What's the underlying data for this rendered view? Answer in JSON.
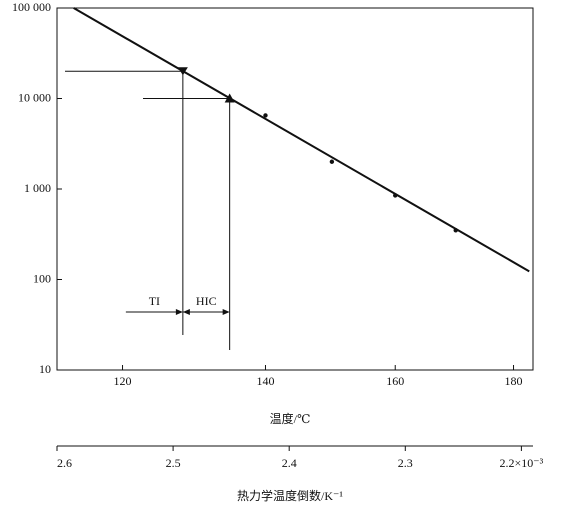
{
  "chart_data": {
    "type": "scatter",
    "xlabel": "温度/℃",
    "x2label": "热力学温度倒数/K⁻¹",
    "xscale": "reciprocal_kelvin",
    "xticks": [
      120,
      140,
      160,
      180
    ],
    "x2lim": [
      2.6,
      2.19
    ],
    "x2ticks": [
      2.6,
      2.5,
      2.4,
      2.3,
      {
        "value": 2.2,
        "label": "2.2×10⁻³"
      }
    ],
    "ylim": [
      10,
      100000
    ],
    "yscale": "log",
    "yticks": [
      {
        "value": 100000,
        "label": "100 000"
      },
      {
        "value": 10000,
        "label": "10 000"
      },
      {
        "value": 1000,
        "label": "1 000"
      },
      100,
      10
    ],
    "color": "#111111",
    "series": [
      {
        "style": "line",
        "x": [
          113.6,
          182.8
        ],
        "values": [
          100000,
          123
        ]
      },
      {
        "style": "dot",
        "x": [
          140,
          150,
          160,
          170
        ],
        "values": [
          6500,
          2000,
          850,
          350
        ]
      }
    ],
    "annotations": [
      {
        "label": "TI",
        "x": 128.2,
        "y": 20000,
        "marker": "triangle-down"
      },
      {
        "label": "HIC",
        "x": 134.8,
        "y": 10000,
        "marker": "triangle-up"
      }
    ]
  }
}
